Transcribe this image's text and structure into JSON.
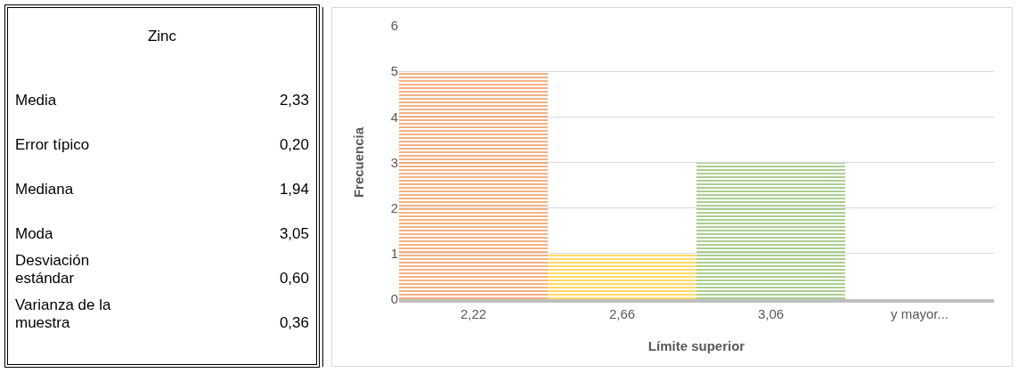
{
  "chart_data": [
    {
      "type": "other",
      "title": "Zinc",
      "categories": [
        "Media",
        "Error típico",
        "Mediana",
        "Moda",
        "Desviación estándar",
        "Varianza de la muestra"
      ],
      "annotations": [
        "2,33",
        "0,20",
        "1,94",
        "3,05",
        "0,60",
        "0,36"
      ]
    },
    {
      "type": "bar",
      "categories": [
        "2,22",
        "2,66",
        "3,06",
        "y mayor..."
      ],
      "values": [
        5,
        1,
        3,
        0
      ],
      "colors": [
        "#ed7d31",
        "#ffc000",
        "#70ad47",
        "#a5a5a5"
      ],
      "xlabel": "Límite superior",
      "ylabel": "Frecuencia",
      "ylim": [
        0,
        6
      ],
      "yticks": [
        0,
        1,
        2,
        3,
        4,
        5,
        6
      ],
      "grid": "y"
    }
  ]
}
